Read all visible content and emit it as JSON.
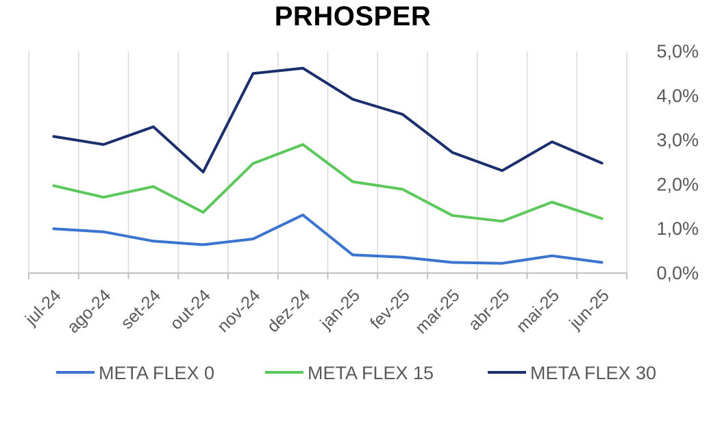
{
  "chart_data": {
    "type": "line",
    "title": "PRHOSPER",
    "categories": [
      "jul-24",
      "ago-24",
      "set-24",
      "out-24",
      "nov-24",
      "dez-24",
      "jan-25",
      "fev-25",
      "mar-25",
      "abr-25",
      "mai-25",
      "jun-25"
    ],
    "series": [
      {
        "name": "META FLEX 0",
        "color": "#3A74CF",
        "values": [
          1.0,
          0.93,
          0.72,
          0.64,
          0.77,
          1.31,
          0.41,
          0.36,
          0.24,
          0.22,
          0.39,
          0.24
        ]
      },
      {
        "name": "META FLEX 15",
        "color": "#5CC85C",
        "values": [
          1.97,
          1.71,
          1.95,
          1.37,
          2.47,
          2.9,
          2.06,
          1.89,
          1.3,
          1.17,
          1.6,
          1.23
        ]
      },
      {
        "name": "META FLEX 30",
        "color": "#1B2F6E",
        "values": [
          3.08,
          2.9,
          3.3,
          2.28,
          4.5,
          4.62,
          3.92,
          3.58,
          2.72,
          2.31,
          2.96,
          2.48
        ]
      }
    ],
    "y_ticks": [
      "0,0%",
      "1,0%",
      "2,0%",
      "3,0%",
      "4,0%",
      "5,0%"
    ],
    "ylim": [
      0,
      5
    ],
    "y_axis_side": "right",
    "grid": "vertical",
    "legend_position": "bottom"
  }
}
